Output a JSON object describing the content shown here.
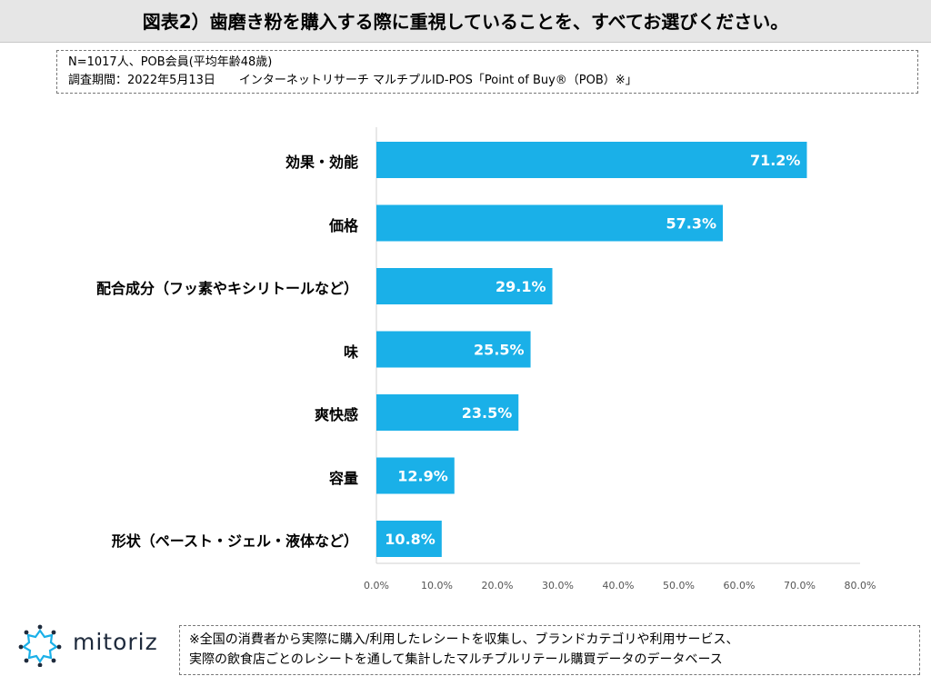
{
  "header": {
    "title": "図表2）歯磨き粉を購入する際に重視していることを、すべてお選びください。"
  },
  "meta": {
    "line1": "N=1017人、POB会員(平均年齢48歳)",
    "line2": "調査期間：2022年5月13日　　インターネットリサーチ マルチプルID-POS「Point of Buy®（POB）※」"
  },
  "chart_data": {
    "type": "bar",
    "orientation": "horizontal",
    "categories": [
      "効果・効能",
      "価格",
      "配合成分（フッ素やキシリトールなど）",
      "味",
      "爽快感",
      "容量",
      "形状（ペースト・ジェル・液体など）"
    ],
    "values": [
      71.2,
      57.3,
      29.1,
      25.5,
      23.5,
      12.9,
      10.8
    ],
    "value_labels": [
      "71.2%",
      "57.3%",
      "29.1%",
      "25.5%",
      "23.5%",
      "12.9%",
      "10.8%"
    ],
    "xlim": [
      0,
      80
    ],
    "ticks": [
      0,
      10,
      20,
      30,
      40,
      50,
      60,
      70,
      80
    ],
    "tick_labels": [
      "0.0%",
      "10.0%",
      "20.0%",
      "30.0%",
      "40.0%",
      "50.0%",
      "60.0%",
      "70.0%",
      "80.0%"
    ],
    "bar_color": "#1ab0e8",
    "grid": false
  },
  "logo": {
    "text": "mitoriz",
    "icon": "mitoriz-logo-icon"
  },
  "note": {
    "line1": "※全国の消費者から実際に購入/利用したレシートを収集し、ブランドカテゴリや利用サービス、",
    "line2": "実際の飲食店ごとのレシートを通して集計したマルチプルリテール購買データのデータベース"
  }
}
